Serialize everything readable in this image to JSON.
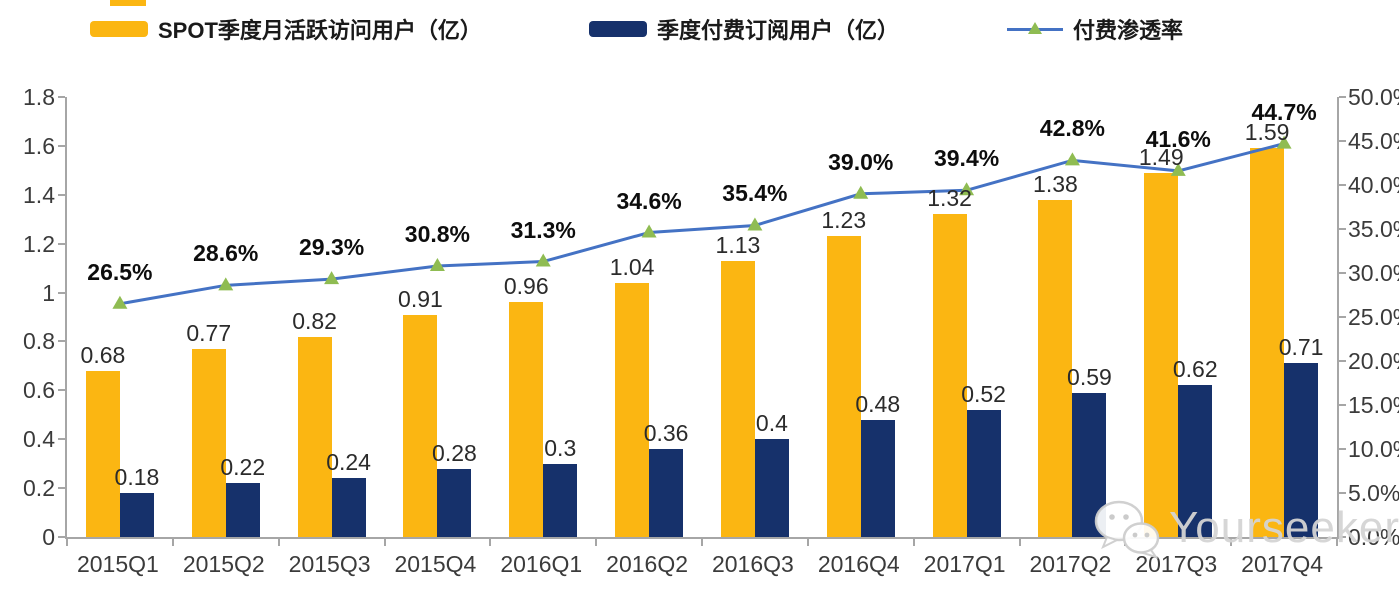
{
  "page": {
    "background": "#FFFFFF"
  },
  "legend": [
    {
      "label": "SPOT季度月活跃访问用户（亿）",
      "color": "#FBB612",
      "type": "bar"
    },
    {
      "label": "季度付费订阅用户（亿）",
      "color": "#16316B",
      "type": "bar"
    },
    {
      "label": "付费渗透率",
      "color": "#4472C4",
      "marker_color": "#8FBC52",
      "type": "line"
    }
  ],
  "chart_data": {
    "type": "bar",
    "combo": "dual-axis grouped bars + line",
    "title": "",
    "categories": [
      "2015Q1",
      "2015Q2",
      "2015Q3",
      "2015Q4",
      "2016Q1",
      "2016Q2",
      "2016Q3",
      "2016Q4",
      "2017Q1",
      "2017Q2",
      "2017Q3",
      "2017Q4"
    ],
    "series": [
      {
        "name": "SPOT季度月活跃访问用户（亿）",
        "type": "bar",
        "axis": "left",
        "color": "#FBB612",
        "values": [
          0.68,
          0.77,
          0.82,
          0.91,
          0.96,
          1.04,
          1.13,
          1.23,
          1.32,
          1.38,
          1.49,
          1.59
        ],
        "labels": [
          "0.68",
          "0.77",
          "0.82",
          "0.91",
          "0.96",
          "1.04",
          "1.13",
          "1.23",
          "1.32",
          "1.38",
          "1.49",
          "1.59"
        ]
      },
      {
        "name": "季度付费订阅用户（亿）",
        "type": "bar",
        "axis": "left",
        "color": "#16316B",
        "values": [
          0.18,
          0.22,
          0.24,
          0.28,
          0.3,
          0.36,
          0.4,
          0.48,
          0.52,
          0.59,
          0.62,
          0.71
        ],
        "labels": [
          "0.18",
          "0.22",
          "0.24",
          "0.28",
          "0.3",
          "0.36",
          "0.4",
          "0.48",
          "0.52",
          "0.59",
          "0.62",
          "0.71"
        ]
      },
      {
        "name": "付费渗透率",
        "type": "line",
        "axis": "right",
        "color": "#4472C4",
        "marker": "triangle",
        "marker_color": "#8FBC52",
        "values": [
          26.5,
          28.6,
          29.3,
          30.8,
          31.3,
          34.6,
          35.4,
          39.0,
          39.4,
          42.8,
          41.6,
          44.7
        ],
        "labels": [
          "26.5%",
          "28.6%",
          "29.3%",
          "30.8%",
          "31.3%",
          "34.6%",
          "35.4%",
          "39.0%",
          "39.4%",
          "42.8%",
          "41.6%",
          "44.7%"
        ]
      }
    ],
    "left_axis": {
      "min": 0,
      "max": 1.8,
      "tick_labels": [
        "1.8",
        "1.6",
        "1.4",
        "1.2",
        "1",
        "0.8",
        "0.6",
        "0.4",
        "0.2",
        "0"
      ]
    },
    "right_axis": {
      "min": 0,
      "max": 50,
      "tick_labels": [
        "50.0%",
        "45.0%",
        "40.0%",
        "35.0%",
        "30.0%",
        "25.0%",
        "20.0%",
        "15.0%",
        "10.0%",
        "5.0%",
        "0.0%"
      ]
    },
    "grid": false,
    "legend_position": "top",
    "axis_color": "#A6A6A6"
  },
  "watermark": {
    "icon": "wechat-icon",
    "text": "Yourseeker"
  }
}
